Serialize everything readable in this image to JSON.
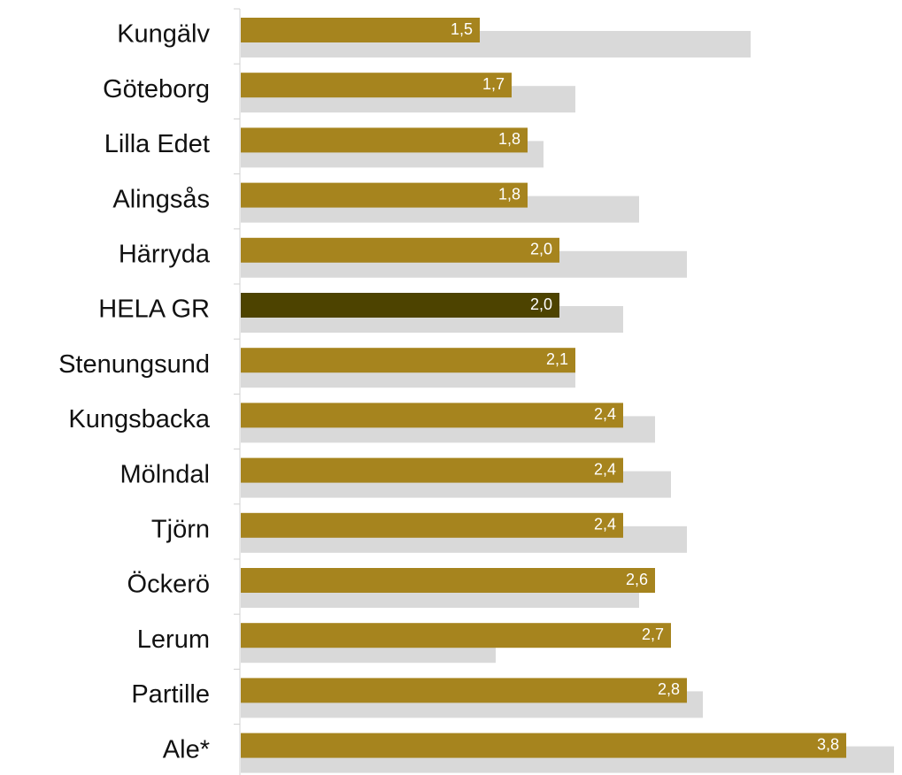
{
  "chart_data": {
    "type": "bar",
    "orientation": "horizontal",
    "categories": [
      "Kungälv",
      "Göteborg",
      "Lilla Edet",
      "Alingsås",
      "Härryda",
      "HELA GR",
      "Stenungsund",
      "Kungsbacka",
      "Mölndal",
      "Tjörn",
      "Öckerö",
      "Lerum",
      "Partille",
      "Ale*"
    ],
    "series": [
      {
        "color": "#a6841e",
        "colors": [
          "#a6841e",
          "#a6841e",
          "#a6841e",
          "#a6841e",
          "#a6841e",
          "#4d4300",
          "#a6841e",
          "#a6841e",
          "#a6841e",
          "#a6841e",
          "#a6841e",
          "#a6841e",
          "#a6841e",
          "#a6841e"
        ],
        "values": [
          1.5,
          1.7,
          1.8,
          1.8,
          2.0,
          2.0,
          2.1,
          2.4,
          2.4,
          2.4,
          2.6,
          2.7,
          2.8,
          3.8
        ],
        "value_labels": [
          "1,5",
          "1,7",
          "1,8",
          "1,8",
          "2,0",
          "2,0",
          "2,1",
          "2,4",
          "2,4",
          "2,4",
          "2,6",
          "2,7",
          "2,8",
          "3,8"
        ]
      },
      {
        "color": "#d9d9d9",
        "values": [
          3.2,
          2.1,
          1.9,
          2.5,
          2.8,
          2.4,
          2.1,
          2.6,
          2.7,
          2.8,
          2.5,
          1.6,
          2.9,
          4.1
        ]
      }
    ],
    "xlim": [
      0,
      4.15
    ]
  }
}
